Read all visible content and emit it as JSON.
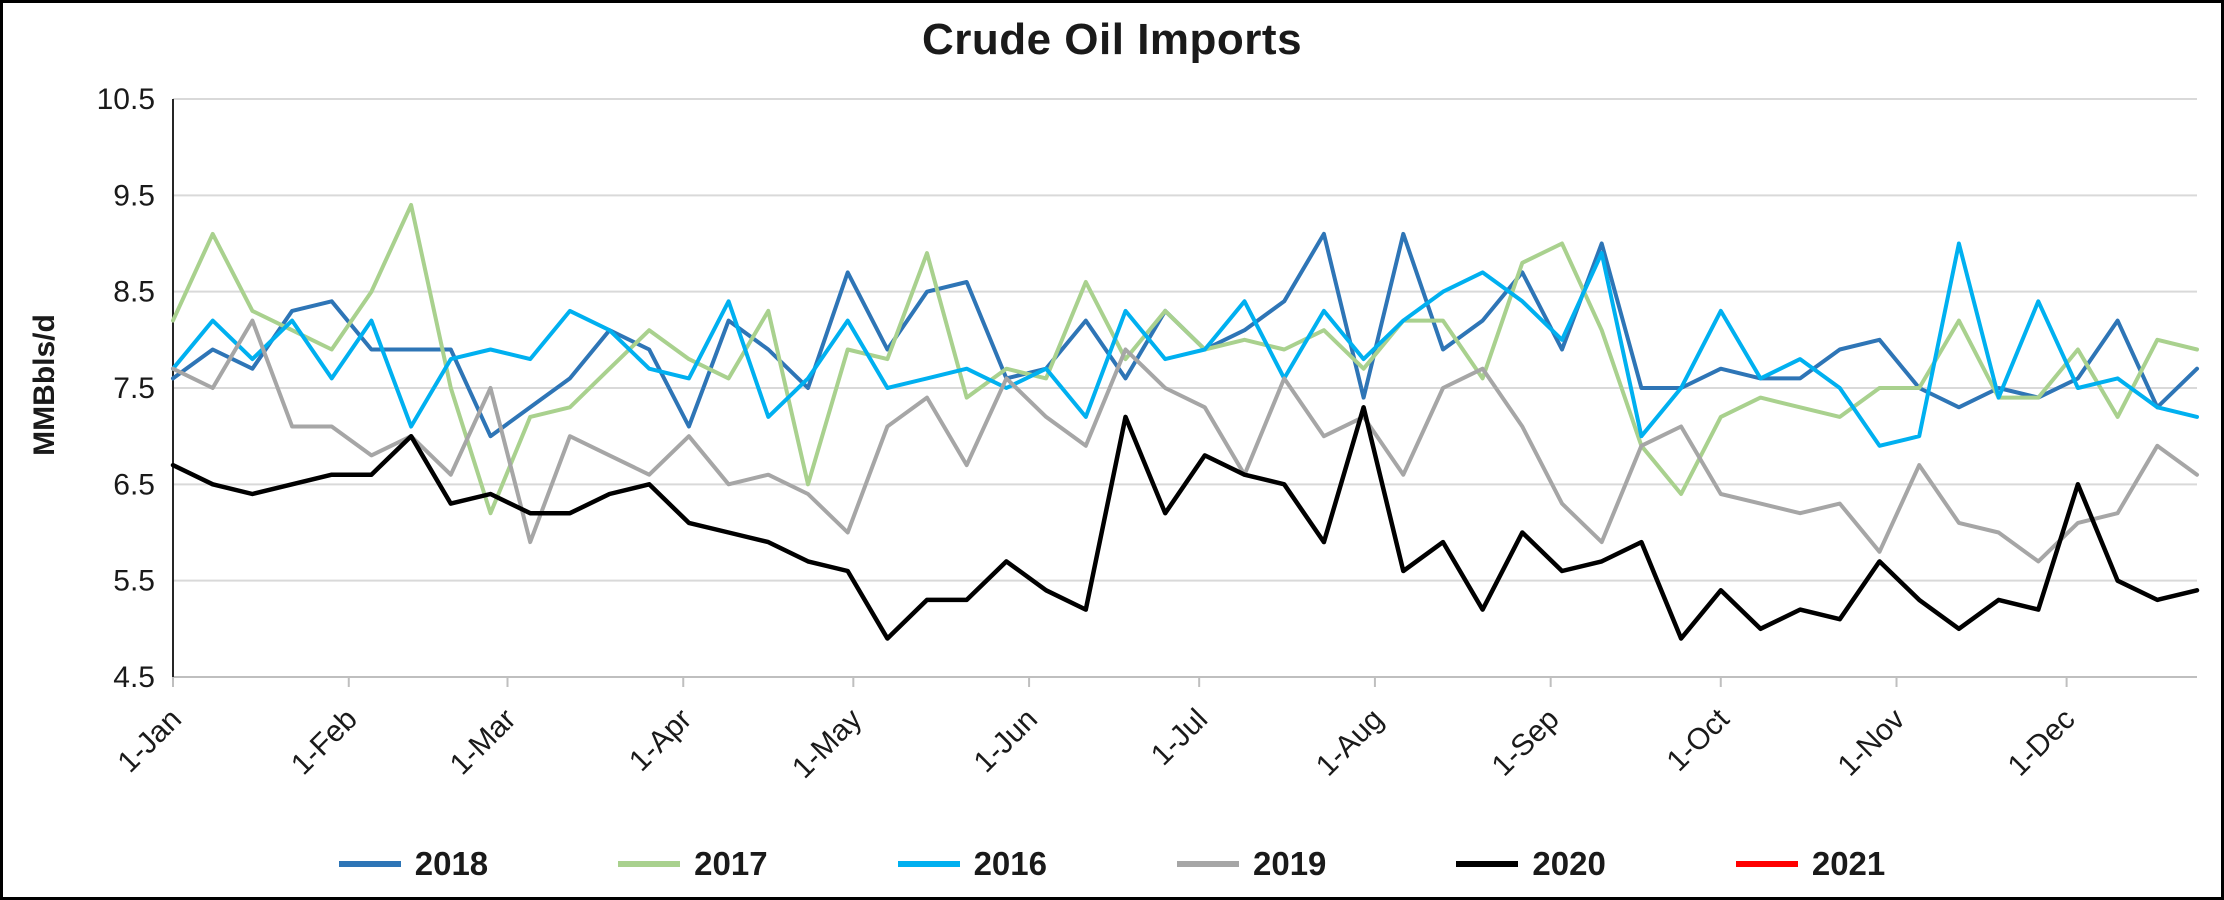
{
  "chart_data": {
    "type": "line",
    "title": "Crude Oil Imports",
    "ylabel": "MMBbls/d",
    "ylim": [
      4.5,
      10.5
    ],
    "y_step": 1.0,
    "grid": "horizontal",
    "legend_position": "bottom",
    "x_unit": "week",
    "points_per_series": 52,
    "x_tick_labels": [
      "1-Jan",
      "1-Feb",
      "1-Mar",
      "1-Apr",
      "1-May",
      "1-Jun",
      "1-Jul",
      "1-Aug",
      "1-Sep",
      "1-Oct",
      "1-Nov",
      "1-Dec"
    ],
    "x_tick_day_offsets": [
      0,
      31,
      59,
      90,
      120,
      151,
      181,
      212,
      243,
      273,
      304,
      334
    ],
    "x_span_days": 357,
    "series": [
      {
        "name": "2018",
        "color": "#2E75B6",
        "values": [
          7.6,
          7.9,
          7.7,
          8.3,
          8.4,
          7.9,
          7.9,
          7.9,
          7.0,
          7.3,
          7.6,
          8.1,
          7.9,
          7.1,
          8.2,
          7.9,
          7.5,
          8.7,
          7.9,
          8.5,
          8.6,
          7.6,
          7.7,
          8.2,
          7.6,
          8.3,
          7.9,
          8.1,
          8.4,
          9.1,
          7.4,
          9.1,
          7.9,
          8.2,
          8.7,
          7.9,
          9.0,
          7.5,
          7.5,
          7.7,
          7.6,
          7.6,
          7.9,
          8.0,
          7.5,
          7.3,
          7.5,
          7.4,
          7.6,
          8.2,
          7.3,
          7.7
        ]
      },
      {
        "name": "2017",
        "color": "#A9D18E",
        "values": [
          8.2,
          9.1,
          8.3,
          8.1,
          7.9,
          8.5,
          9.4,
          7.5,
          6.2,
          7.2,
          7.3,
          7.7,
          8.1,
          7.8,
          7.6,
          8.3,
          6.5,
          7.9,
          7.8,
          8.9,
          7.4,
          7.7,
          7.6,
          8.6,
          7.8,
          8.3,
          7.9,
          8.0,
          7.9,
          8.1,
          7.7,
          8.2,
          8.2,
          7.6,
          8.8,
          9.0,
          8.1,
          6.9,
          6.4,
          7.2,
          7.4,
          7.3,
          7.2,
          7.5,
          7.5,
          8.2,
          7.4,
          7.4,
          7.9,
          7.2,
          8.0,
          7.9
        ]
      },
      {
        "name": "2016",
        "color": "#00B0F0",
        "values": [
          7.7,
          8.2,
          7.8,
          8.2,
          7.6,
          8.2,
          7.1,
          7.8,
          7.9,
          7.8,
          8.3,
          8.1,
          7.7,
          7.6,
          8.4,
          7.2,
          7.6,
          8.2,
          7.5,
          7.6,
          7.7,
          7.5,
          7.7,
          7.2,
          8.3,
          7.8,
          7.9,
          8.4,
          7.6,
          8.3,
          7.8,
          8.2,
          8.5,
          8.7,
          8.4,
          8.0,
          8.9,
          7.0,
          7.5,
          8.3,
          7.6,
          7.8,
          7.5,
          6.9,
          7.0,
          9.0,
          7.4,
          8.4,
          7.5,
          7.6,
          7.3,
          7.2
        ]
      },
      {
        "name": "2019",
        "color": "#A6A6A6",
        "values": [
          7.7,
          7.5,
          8.2,
          7.1,
          7.1,
          6.8,
          7.0,
          6.6,
          7.5,
          5.9,
          7.0,
          6.8,
          6.6,
          7.0,
          6.5,
          6.6,
          6.4,
          6.0,
          7.1,
          7.4,
          6.7,
          7.6,
          7.2,
          6.9,
          7.9,
          7.5,
          7.3,
          6.6,
          7.6,
          7.0,
          7.2,
          6.6,
          7.5,
          7.7,
          7.1,
          6.3,
          5.9,
          6.9,
          7.1,
          6.4,
          6.3,
          6.2,
          6.3,
          5.8,
          6.7,
          6.1,
          6.0,
          5.7,
          6.1,
          6.2,
          6.9,
          6.6
        ]
      },
      {
        "name": "2020",
        "color": "#000000",
        "values": [
          6.7,
          6.5,
          6.4,
          6.5,
          6.6,
          6.6,
          7.0,
          6.3,
          6.4,
          6.2,
          6.2,
          6.4,
          6.5,
          6.1,
          6.0,
          5.9,
          5.7,
          5.6,
          4.9,
          5.3,
          5.3,
          5.7,
          5.4,
          5.2,
          7.2,
          6.2,
          6.8,
          6.6,
          6.5,
          5.9,
          7.3,
          5.6,
          5.9,
          5.2,
          6.0,
          5.6,
          5.7,
          5.9,
          4.9,
          5.4,
          5.0,
          5.2,
          5.1,
          5.7,
          5.3,
          5.0,
          5.3,
          5.2,
          6.5,
          5.5,
          5.3,
          5.4
        ]
      },
      {
        "name": "2021",
        "color": "#FF0000",
        "values": []
      }
    ]
  }
}
